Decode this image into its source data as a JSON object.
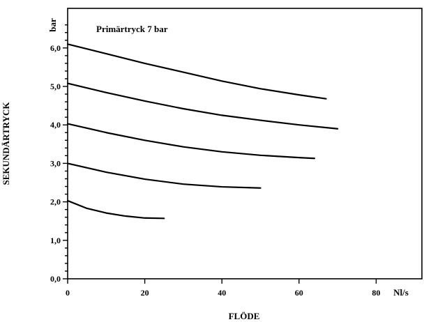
{
  "chart_data": {
    "type": "line",
    "annotation": "Primärtryck 7 bar",
    "xlabel": "FLÖDE",
    "ylabel": "SEKUNDÄRTRYCK",
    "x_unit": "Nl/s",
    "y_unit": "bar",
    "xlim": [
      0,
      95
    ],
    "ylim": [
      0,
      7
    ],
    "x_ticks": [
      0,
      20,
      40,
      60,
      80
    ],
    "x_tick_labels": [
      "0",
      "20",
      "40",
      "60",
      "80"
    ],
    "y_ticks": [
      0,
      1,
      2,
      3,
      4,
      5,
      6
    ],
    "y_tick_labels": [
      "0,0",
      "1,0",
      "2,0",
      "3,0",
      "4,0",
      "5,0",
      "6,0"
    ],
    "grid": false,
    "legend": "none",
    "series": [
      {
        "points": [
          [
            0,
            6.1
          ],
          [
            10,
            5.85
          ],
          [
            20,
            5.6
          ],
          [
            30,
            5.37
          ],
          [
            40,
            5.14
          ],
          [
            50,
            4.94
          ],
          [
            60,
            4.78
          ],
          [
            67,
            4.68
          ]
        ]
      },
      {
        "points": [
          [
            0,
            5.08
          ],
          [
            10,
            4.84
          ],
          [
            20,
            4.62
          ],
          [
            30,
            4.42
          ],
          [
            40,
            4.25
          ],
          [
            50,
            4.12
          ],
          [
            60,
            4.0
          ],
          [
            70,
            3.9
          ]
        ]
      },
      {
        "points": [
          [
            0,
            4.03
          ],
          [
            10,
            3.8
          ],
          [
            20,
            3.6
          ],
          [
            30,
            3.43
          ],
          [
            40,
            3.3
          ],
          [
            50,
            3.21
          ],
          [
            60,
            3.15
          ],
          [
            64,
            3.13
          ]
        ]
      },
      {
        "points": [
          [
            0,
            3.0
          ],
          [
            10,
            2.77
          ],
          [
            20,
            2.59
          ],
          [
            30,
            2.46
          ],
          [
            40,
            2.39
          ],
          [
            50,
            2.36
          ]
        ]
      },
      {
        "points": [
          [
            0,
            2.03
          ],
          [
            5,
            1.83
          ],
          [
            10,
            1.71
          ],
          [
            15,
            1.63
          ],
          [
            20,
            1.58
          ],
          [
            25,
            1.57
          ]
        ]
      }
    ]
  }
}
